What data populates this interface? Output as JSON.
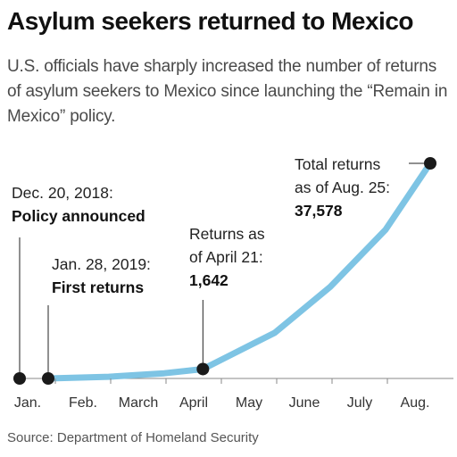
{
  "title": "Asylum seekers returned to Mexico",
  "subtitle": "U.S. officials have sharply increased the number of returns of asylum seekers to Mexico since launching the “Remain in Mexico” policy.",
  "source": "Source: Department of Homeland Security",
  "colors": {
    "line": "#7ec4e4",
    "marker": "#1a1a1a",
    "axis": "#888888"
  },
  "chart_data": {
    "type": "line",
    "title": "Asylum seekers returned to Mexico",
    "xlabel": "",
    "ylabel": "",
    "x_tick_labels": [
      "Jan.",
      "Feb.",
      "March",
      "April",
      "May",
      "June",
      "July",
      "Aug."
    ],
    "ylim": [
      0,
      37578
    ],
    "grid": false,
    "series": [
      {
        "x": [
          "2019-01-28",
          "2019-02-28",
          "2019-03-31",
          "2019-04-21",
          "2019-05-31",
          "2019-06-30",
          "2019-07-31",
          "2019-08-25"
        ],
        "y": [
          0,
          300,
          900,
          1642,
          8000,
          16000,
          26000,
          37578
        ]
      }
    ],
    "annotations": [
      {
        "date": "2018-12-20",
        "value": 0,
        "lines": [
          "Dec. 20, 2018:",
          "Policy announced"
        ],
        "bold_from": 1
      },
      {
        "date": "2019-01-28",
        "value": 0,
        "lines": [
          "Jan. 28, 2019:",
          "First returns"
        ],
        "bold_from": 1
      },
      {
        "date": "2019-04-21",
        "value": 1642,
        "lines": [
          "Returns as",
          "of April 21:",
          "1,642"
        ],
        "bold_from": 2
      },
      {
        "date": "2019-08-25",
        "value": 37578,
        "lines": [
          "Total returns",
          "as of Aug. 25:",
          "37,578"
        ],
        "bold_from": 2
      }
    ]
  }
}
